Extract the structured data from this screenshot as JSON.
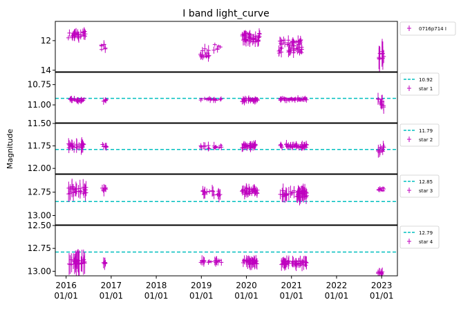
{
  "chart_data": {
    "type": "scatter",
    "title": "I band light_curve",
    "ylabel": "Magnitude",
    "xlabel": "",
    "grid": false,
    "legend_placement": "outside-right",
    "marker": "+ with vertical error bars",
    "colors": {
      "points": "#bf00bf",
      "reference": "#00bfbf"
    },
    "x_ticks": [
      {
        "year": "2016",
        "date": "01/01"
      },
      {
        "year": "2017",
        "date": "01/01"
      },
      {
        "year": "2018",
        "date": "01/01"
      },
      {
        "year": "2019",
        "date": "01/01"
      },
      {
        "year": "2020",
        "date": "01/01"
      },
      {
        "year": "2021",
        "date": "01/01"
      },
      {
        "year": "2022",
        "date": "01/01"
      },
      {
        "year": "2023",
        "date": "01/01"
      }
    ],
    "xlim": [
      2015.76,
      2023.35
    ],
    "panels": [
      {
        "name": "0716p714 I",
        "legend": [
          "0716p714 I"
        ],
        "ylim": [
          14.1,
          10.7
        ],
        "yticks": [
          12,
          14
        ],
        "yticklabels": [
          "12",
          "14"
        ],
        "reference": null,
        "clusters": [
          {
            "x_range": [
              2016.05,
              2016.45
            ],
            "y": 11.6,
            "spread": 0.5,
            "err": 0.3,
            "n": 28
          },
          {
            "x_range": [
              2016.78,
              2016.88
            ],
            "y": 12.4,
            "spread": 0.4,
            "err": 0.25,
            "n": 7
          },
          {
            "x_range": [
              2018.98,
              2019.18
            ],
            "y": 12.85,
            "spread": 0.6,
            "err": 0.3,
            "n": 16
          },
          {
            "x_range": [
              2019.2,
              2019.45
            ],
            "y": 12.4,
            "spread": 0.5,
            "err": 0.2,
            "n": 6
          },
          {
            "x_range": [
              2019.9,
              2020.3
            ],
            "y": 11.8,
            "spread": 0.6,
            "err": 0.35,
            "n": 40
          },
          {
            "x_range": [
              2020.72,
              2021.25
            ],
            "y": 12.4,
            "spread": 0.9,
            "err": 0.35,
            "n": 50
          },
          {
            "x_range": [
              2022.92,
              2023.05
            ],
            "y": 12.9,
            "spread": 0.9,
            "err": 0.8,
            "n": 10
          }
        ]
      },
      {
        "name": "star 1",
        "legend": [
          "10.92",
          "star 1"
        ],
        "ylim": [
          11.22,
          10.6
        ],
        "yticks": [
          10.75,
          11.0
        ],
        "yticklabels": [
          "10.75",
          "11.00"
        ],
        "reference": 10.92,
        "clusters": [
          {
            "x_range": [
              2016.05,
              2016.4
            ],
            "y": 10.94,
            "spread": 0.04,
            "err": 0.04,
            "n": 26
          },
          {
            "x_range": [
              2016.8,
              2016.9
            ],
            "y": 10.94,
            "spread": 0.04,
            "err": 0.04,
            "n": 6
          },
          {
            "x_range": [
              2018.98,
              2019.45
            ],
            "y": 10.93,
            "spread": 0.03,
            "err": 0.03,
            "n": 18
          },
          {
            "x_range": [
              2019.9,
              2020.25
            ],
            "y": 10.94,
            "spread": 0.04,
            "err": 0.04,
            "n": 36
          },
          {
            "x_range": [
              2020.75,
              2021.35
            ],
            "y": 10.93,
            "spread": 0.03,
            "err": 0.03,
            "n": 48
          },
          {
            "x_range": [
              2022.92,
              2023.05
            ],
            "y": 10.98,
            "spread": 0.12,
            "err": 0.08,
            "n": 10
          }
        ]
      },
      {
        "name": "star 2",
        "legend": [
          "11.79",
          "star 2"
        ],
        "ylim": [
          12.06,
          11.5
        ],
        "yticks": [
          11.5,
          11.75,
          12.0
        ],
        "yticklabels": [
          "11.50",
          "11.75",
          "12.00"
        ],
        "reference": 11.79,
        "clusters": [
          {
            "x_range": [
              2016.05,
              2016.4
            ],
            "y": 11.75,
            "spread": 0.05,
            "err": 0.07,
            "n": 26
          },
          {
            "x_range": [
              2016.8,
              2016.9
            ],
            "y": 11.75,
            "spread": 0.04,
            "err": 0.04,
            "n": 6
          },
          {
            "x_range": [
              2018.98,
              2019.45
            ],
            "y": 11.76,
            "spread": 0.04,
            "err": 0.04,
            "n": 18
          },
          {
            "x_range": [
              2019.9,
              2020.25
            ],
            "y": 11.75,
            "spread": 0.05,
            "err": 0.04,
            "n": 36
          },
          {
            "x_range": [
              2020.75,
              2021.35
            ],
            "y": 11.75,
            "spread": 0.04,
            "err": 0.04,
            "n": 48
          },
          {
            "x_range": [
              2022.92,
              2023.05
            ],
            "y": 11.79,
            "spread": 0.08,
            "err": 0.06,
            "n": 10
          }
        ]
      },
      {
        "name": "star 3",
        "legend": [
          "12.85",
          "star 3"
        ],
        "ylim": [
          13.1,
          12.56
        ],
        "yticks": [
          12.75,
          13.0
        ],
        "yticklabels": [
          "12.75",
          "13.00"
        ],
        "reference": 12.85,
        "clusters": [
          {
            "x_range": [
              2016.05,
              2016.45
            ],
            "y": 12.73,
            "spread": 0.08,
            "err": 0.08,
            "n": 26
          },
          {
            "x_range": [
              2016.8,
              2016.9
            ],
            "y": 12.72,
            "spread": 0.05,
            "err": 0.07,
            "n": 6
          },
          {
            "x_range": [
              2018.98,
              2019.45
            ],
            "y": 12.76,
            "spread": 0.06,
            "err": 0.06,
            "n": 18
          },
          {
            "x_range": [
              2019.9,
              2020.25
            ],
            "y": 12.74,
            "spread": 0.07,
            "err": 0.05,
            "n": 36
          },
          {
            "x_range": [
              2020.75,
              2021.35
            ],
            "y": 12.77,
            "spread": 0.08,
            "err": 0.07,
            "n": 48
          },
          {
            "x_range": [
              2022.92,
              2023.05
            ],
            "y": 12.72,
            "spread": 0.04,
            "err": 0.03,
            "n": 10
          }
        ]
      },
      {
        "name": "star 4",
        "legend": [
          "12.79",
          "star 4"
        ],
        "ylim": [
          13.05,
          12.5
        ],
        "yticks": [
          12.5,
          12.75,
          13.0
        ],
        "yticklabels": [
          "12.50",
          "12.75",
          "13.00"
        ],
        "reference": 12.79,
        "clusters": [
          {
            "x_range": [
              2016.05,
              2016.45
            ],
            "y": 12.9,
            "spread": 0.06,
            "err": 0.12,
            "n": 26
          },
          {
            "x_range": [
              2016.8,
              2016.9
            ],
            "y": 12.9,
            "spread": 0.04,
            "err": 0.06,
            "n": 6
          },
          {
            "x_range": [
              2018.98,
              2019.45
            ],
            "y": 12.89,
            "spread": 0.03,
            "err": 0.05,
            "n": 18
          },
          {
            "x_range": [
              2019.9,
              2020.25
            ],
            "y": 12.9,
            "spread": 0.05,
            "err": 0.06,
            "n": 36
          },
          {
            "x_range": [
              2020.75,
              2021.35
            ],
            "y": 12.91,
            "spread": 0.05,
            "err": 0.06,
            "n": 48
          },
          {
            "x_range": [
              2022.92,
              2023.05
            ],
            "y": 13.02,
            "spread": 0.04,
            "err": 0.04,
            "n": 10
          }
        ]
      }
    ]
  }
}
